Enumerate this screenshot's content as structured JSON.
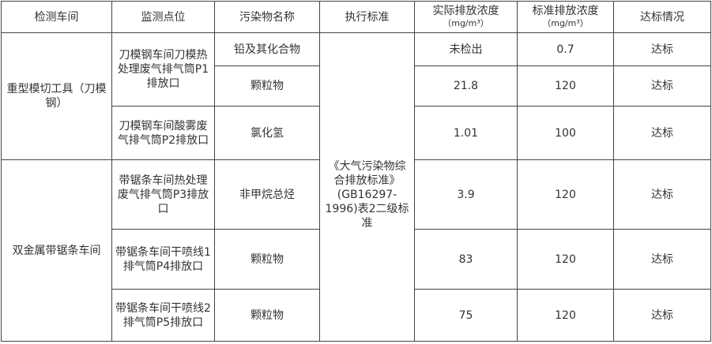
{
  "headers": [
    "检测车间",
    "监测点位",
    "污染物名称",
    "执行标准",
    "实际排放浓度",
    "标准排放浓度",
    "达标情况"
  ],
  "unit": "（mg/m³）",
  "standard": "《大气污染物综合排放标准》(GB16297-1996)表2二级标准",
  "workshops": [
    "重型模切工具（刀模钢）",
    "双金属带锯条车间"
  ],
  "points": [
    "刀模钢车间刀模热处理废气排气筒P1排放口",
    "刀模钢车间酸雾废气排气筒P2排放口",
    "带锯条车间热处理废气排气筒P3排放口",
    "带锯条车间干喷线1排气筒P4排放口",
    "带锯条车间干喷线2排气筒P5排放口"
  ],
  "rows": [
    {
      "pollutant": "铅及其化合物",
      "actual": "未检出",
      "limit": "0.7",
      "status": "达标"
    },
    {
      "pollutant": "颗粒物",
      "actual": "21.8",
      "limit": "120",
      "status": "达标"
    },
    {
      "pollutant": "氯化氢",
      "actual": "1.01",
      "limit": "100",
      "status": "达标"
    },
    {
      "pollutant": "非甲烷总烃",
      "actual": "3.9",
      "limit": "120",
      "status": "达标"
    },
    {
      "pollutant": "颗粒物",
      "actual": "83",
      "limit": "120",
      "status": "达标"
    },
    {
      "pollutant": "颗粒物",
      "actual": "75",
      "limit": "120",
      "status": "达标"
    }
  ]
}
